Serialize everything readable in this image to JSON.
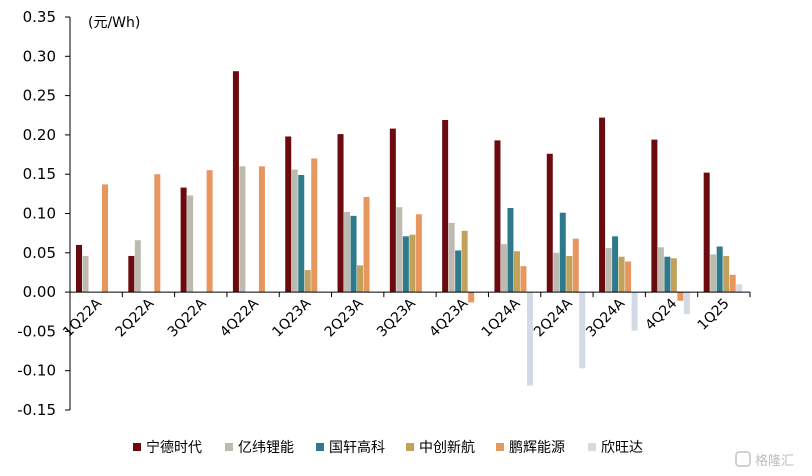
{
  "chart_data": {
    "type": "bar",
    "unit_label": "(元/Wh)",
    "categories": [
      "1Q22A",
      "2Q22A",
      "3Q22A",
      "4Q22A",
      "1Q23A",
      "2Q23A",
      "3Q23A",
      "4Q23A",
      "1Q24A",
      "2Q24A",
      "3Q24A",
      "4Q24",
      "1Q25"
    ],
    "ylim": [
      -0.15,
      0.35
    ],
    "yticks": [
      "0.35",
      "0.30",
      "0.25",
      "0.20",
      "0.15",
      "0.10",
      "0.05",
      "0.00",
      "-0.05",
      "-0.10",
      "-0.15"
    ],
    "legend_position": "bottom",
    "grid": false,
    "series": [
      {
        "name": "宁德时代",
        "color": "#6b0a0f",
        "values": [
          0.06,
          0.046,
          0.133,
          0.281,
          0.198,
          0.201,
          0.208,
          0.219,
          0.193,
          0.176,
          0.222,
          0.194,
          0.152
        ]
      },
      {
        "name": "亿纬锂能",
        "color": "#bdbbb0",
        "values": [
          0.046,
          0.066,
          0.123,
          0.16,
          0.156,
          0.102,
          0.108,
          0.088,
          0.061,
          0.05,
          0.056,
          0.057,
          0.048
        ]
      },
      {
        "name": "国轩高科",
        "color": "#2e7a8c",
        "values": [
          null,
          null,
          null,
          null,
          0.149,
          0.097,
          0.071,
          0.053,
          0.107,
          0.101,
          0.071,
          0.045,
          0.058
        ]
      },
      {
        "name": "中创新航",
        "color": "#c2a25a",
        "values": [
          null,
          null,
          null,
          null,
          0.028,
          0.034,
          0.073,
          0.078,
          0.052,
          0.046,
          0.045,
          0.043,
          0.046
        ]
      },
      {
        "name": "鹏辉能源",
        "color": "#e7965e",
        "values": [
          0.137,
          0.15,
          0.155,
          0.16,
          0.17,
          0.121,
          0.099,
          -0.013,
          0.033,
          0.068,
          0.039,
          -0.011,
          0.022
        ]
      },
      {
        "name": "欣旺达",
        "color": "#d2dae6",
        "values": [
          null,
          null,
          null,
          null,
          null,
          null,
          null,
          null,
          -0.119,
          -0.097,
          -0.049,
          -0.028,
          0.01
        ]
      }
    ]
  },
  "watermark": {
    "text": "格隆汇"
  }
}
